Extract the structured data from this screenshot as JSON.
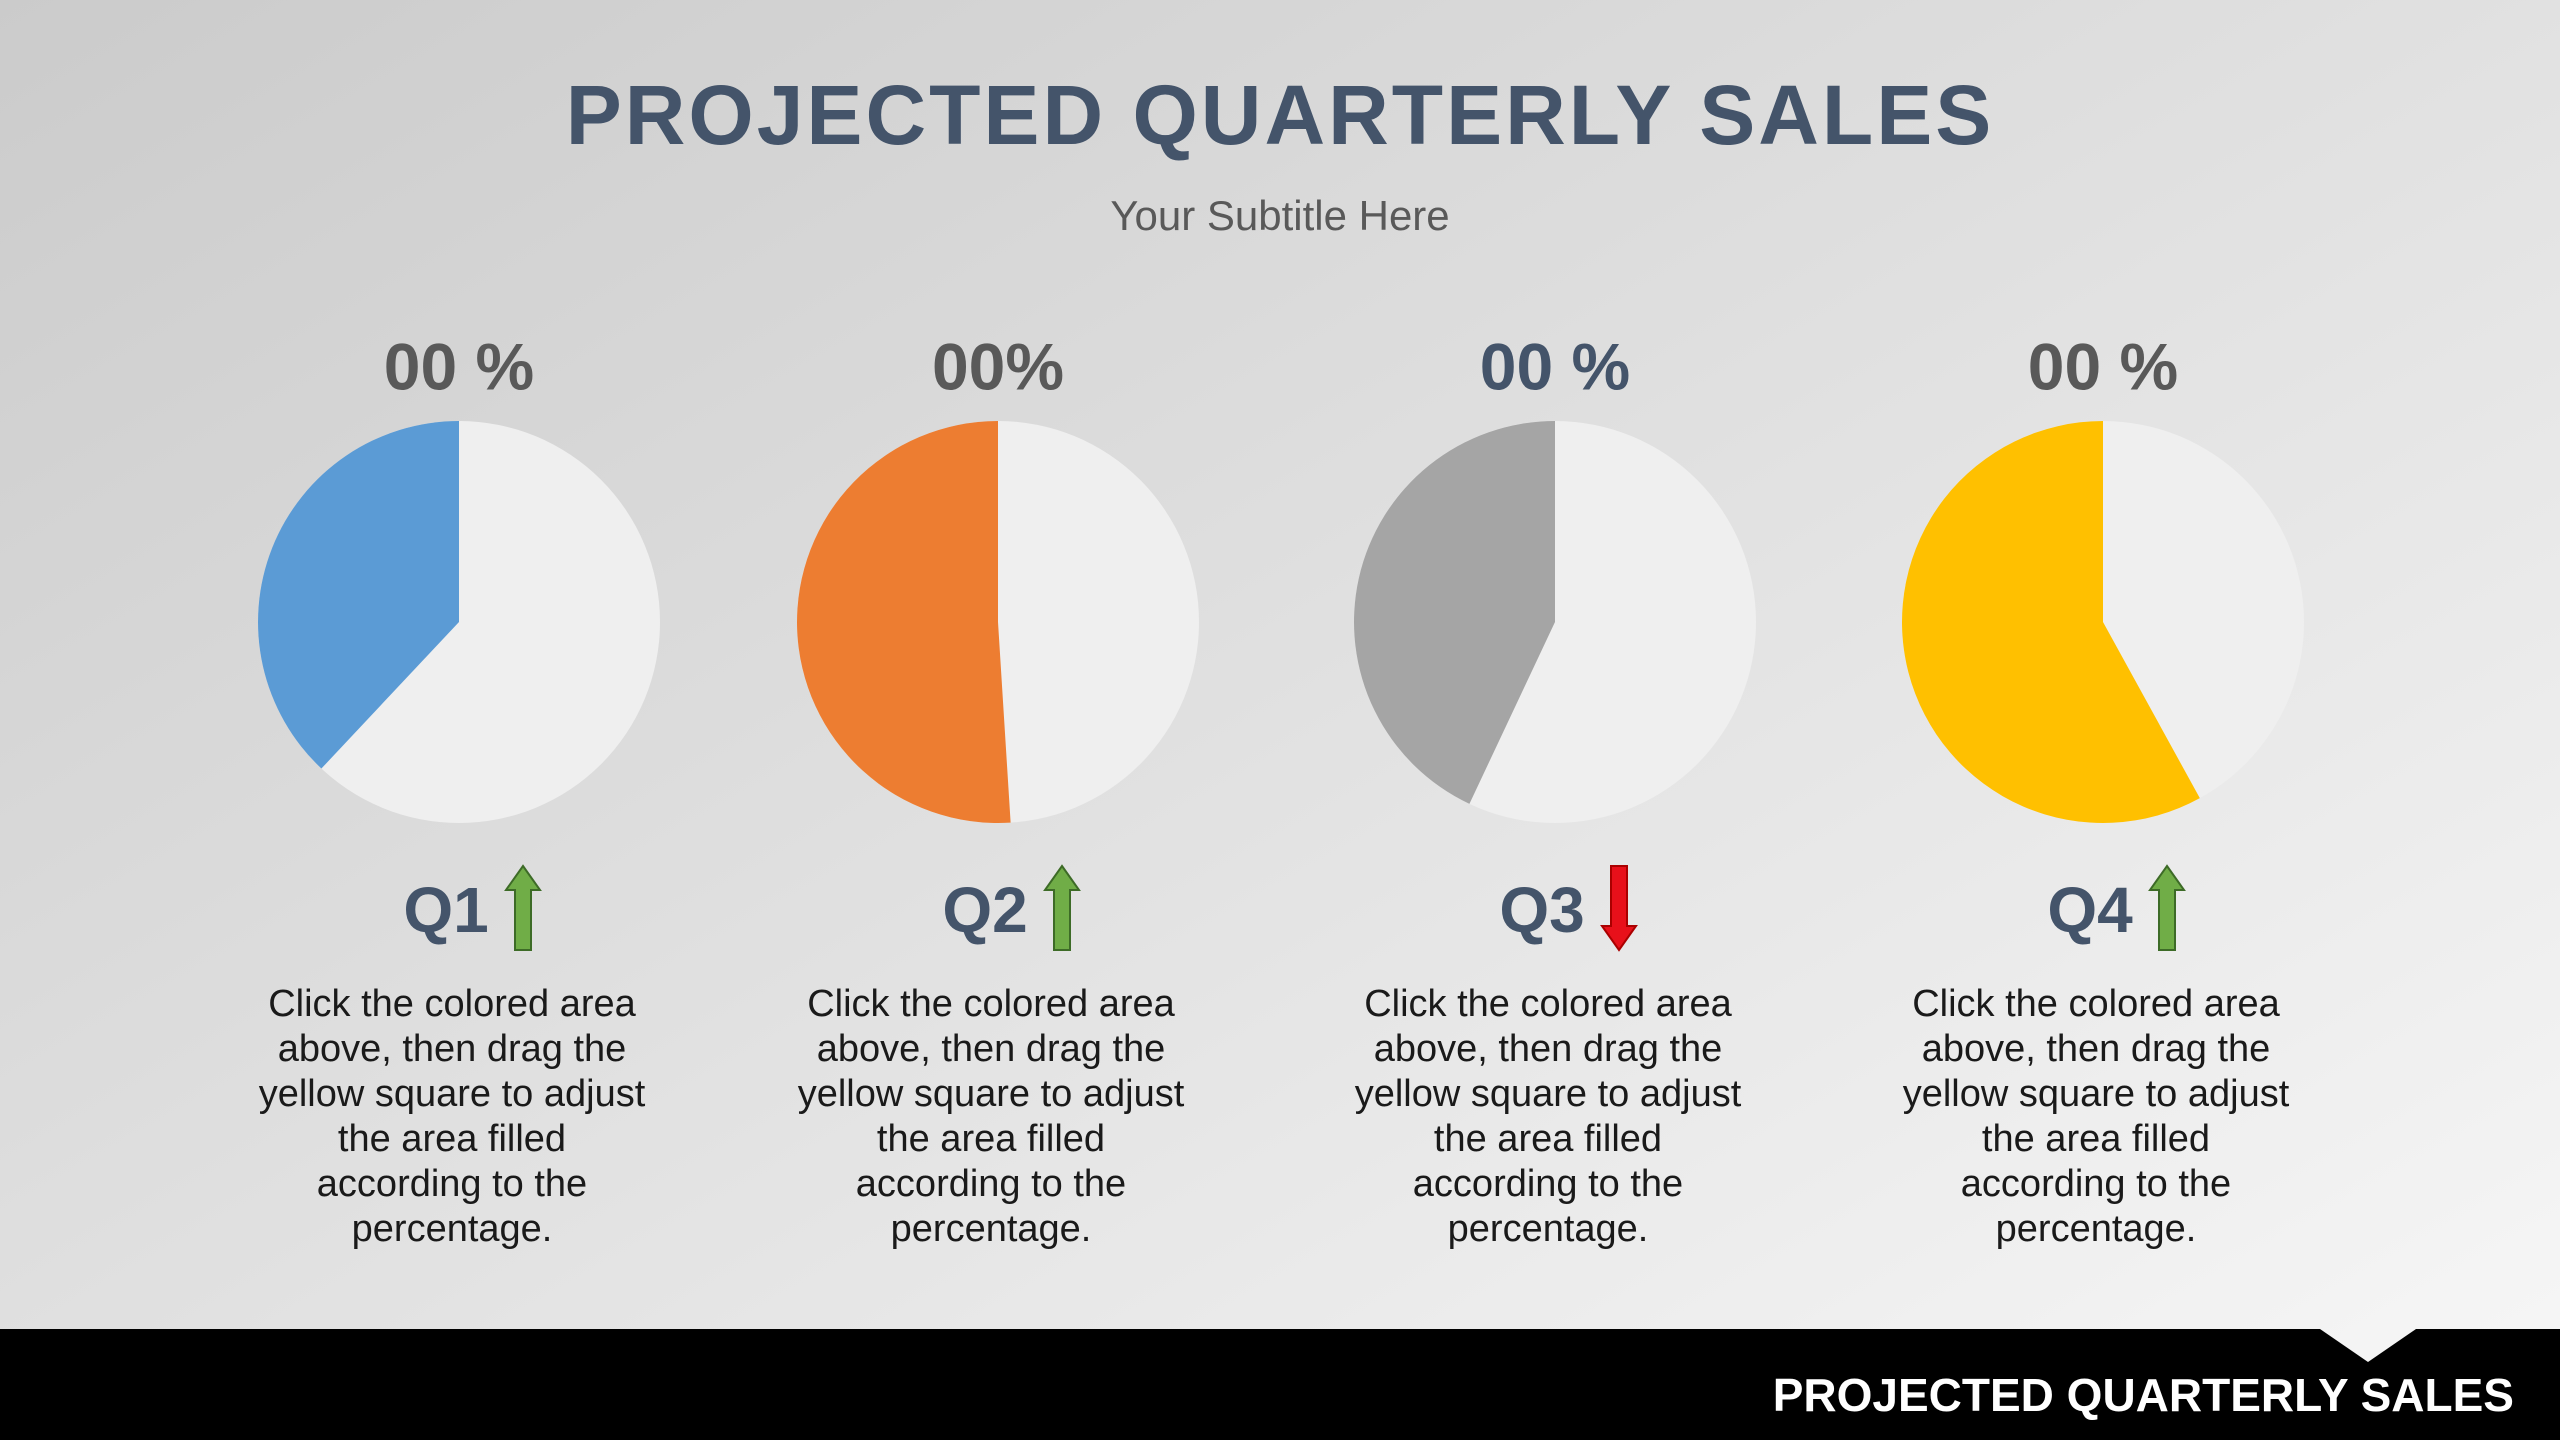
{
  "header": {
    "title": "PROJECTED QUARTERLY SALES",
    "subtitle": "Your Subtitle Here"
  },
  "panels": [
    {
      "percent_label": "00 %",
      "quarter": "Q1",
      "trend": "up",
      "fill_percent": 38,
      "color": "#5b9bd5",
      "description_lines": [
        "Click the colored area",
        "above, then drag the",
        "yellow square to adjust",
        "the area filled",
        "according to the",
        "percentage."
      ]
    },
    {
      "percent_label": "00%",
      "quarter": "Q2",
      "trend": "up",
      "fill_percent": 51,
      "color": "#ed7d31",
      "description_lines": [
        "Click the colored area",
        "above, then drag the",
        "yellow square to adjust",
        "the area filled",
        "according to the",
        "percentage."
      ]
    },
    {
      "percent_label": "00 %",
      "quarter": "Q3",
      "trend": "down",
      "fill_percent": 43,
      "color": "#a5a5a5",
      "description_lines": [
        "Click the colored area",
        "above, then drag the",
        "yellow square to adjust",
        "the area filled",
        "according to the",
        "percentage."
      ]
    },
    {
      "percent_label": "00 %",
      "quarter": "Q4",
      "trend": "up",
      "fill_percent": 58,
      "color": "#ffc000",
      "description_lines": [
        "Click the colored area",
        "above, then drag the",
        "yellow square to adjust",
        "the area filled",
        "according to the",
        "percentage."
      ]
    }
  ],
  "footer": {
    "title": "PROJECTED QUARTERLY SALES"
  }
}
